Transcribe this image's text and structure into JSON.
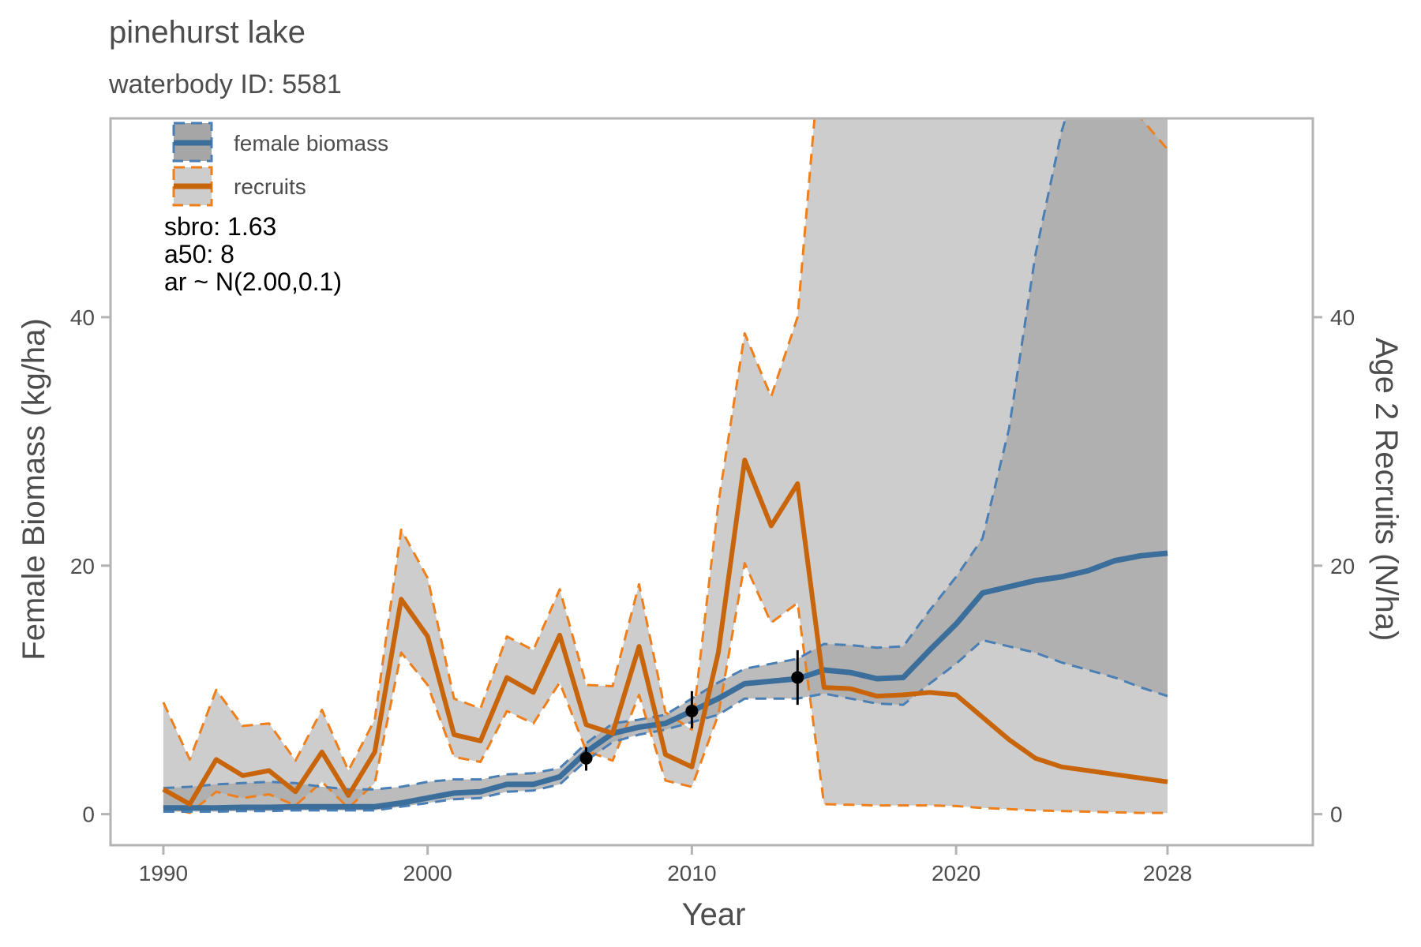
{
  "chart_data": {
    "type": "line",
    "title": "pinehurst lake",
    "subtitle": "waterbody ID: 5581",
    "xlabel": "Year",
    "ylabel": "Female Biomass (kg/ha)",
    "y2label": "Age 2 Recruits (N/ha)",
    "xlim": [
      1988,
      2033.5
    ],
    "ylim": [
      -2.5,
      56
    ],
    "xticks": [
      1990,
      2000,
      2010,
      2020,
      2028
    ],
    "xtick_labels": [
      "1990",
      "2000",
      "2010",
      "2020",
      "2028"
    ],
    "yticks": [
      0,
      20,
      40
    ],
    "ytick_labels": [
      "0",
      "20",
      "40"
    ],
    "y2ticks": [
      0,
      20,
      40
    ],
    "y2tick_labels": [
      "0",
      "20",
      "40"
    ],
    "grid": false,
    "legend_position": "top-left",
    "legend": [
      {
        "label": "female biomass",
        "color": "#3c6e9c",
        "dash_color": "#4a7fb5"
      },
      {
        "label": "recruits",
        "color": "#c8640a",
        "dash_color": "#ef7f1a"
      }
    ],
    "annotations": [
      "sbro: 1.63",
      "a50: 8",
      "ar ~ N(2.00,0.1)"
    ],
    "colors": {
      "biomass_line": "#3c6e9c",
      "biomass_dash": "#4a7fb5",
      "recruit_line": "#c8640a",
      "recruit_dash": "#ef7f1a",
      "band_light": "#cdcdcd",
      "band_dark": "#a6a6a6",
      "panel_border": "#b3b3b3",
      "points": "#000000"
    },
    "series": [
      {
        "name": "female biomass",
        "x": [
          1990,
          1991,
          1992,
          1993,
          1994,
          1995,
          1996,
          1997,
          1998,
          1999,
          2000,
          2001,
          2002,
          2003,
          2004,
          2005,
          2006,
          2007,
          2008,
          2009,
          2010,
          2011,
          2012,
          2013,
          2014,
          2015,
          2016,
          2017,
          2018,
          2019,
          2020,
          2021,
          2022,
          2023,
          2024,
          2025,
          2026,
          2027,
          2028
        ],
        "y": [
          0.5,
          0.5,
          0.5,
          0.55,
          0.55,
          0.6,
          0.6,
          0.6,
          0.6,
          0.9,
          1.3,
          1.7,
          1.8,
          2.4,
          2.4,
          3.0,
          5.0,
          6.5,
          7.0,
          7.3,
          8.3,
          9.3,
          10.5,
          10.7,
          10.9,
          11.6,
          11.4,
          10.9,
          11.0,
          13.2,
          15.3,
          17.8,
          18.3,
          18.8,
          19.1,
          19.6,
          20.4,
          20.8,
          21.0
        ],
        "lower": [
          0.2,
          0.2,
          0.2,
          0.25,
          0.25,
          0.3,
          0.3,
          0.3,
          0.3,
          0.6,
          0.9,
          1.2,
          1.3,
          1.8,
          1.9,
          2.4,
          4.3,
          5.8,
          6.4,
          6.8,
          7.4,
          8.0,
          9.3,
          9.3,
          9.3,
          9.7,
          9.3,
          8.9,
          8.8,
          10.5,
          12.1,
          14.0,
          13.5,
          13.0,
          12.2,
          11.6,
          11.0,
          10.2,
          9.5
        ],
        "upper": [
          2.1,
          2.2,
          2.4,
          2.5,
          2.6,
          2.5,
          2.2,
          2.0,
          2.0,
          2.2,
          2.6,
          2.8,
          2.8,
          3.2,
          3.3,
          3.7,
          5.7,
          7.3,
          7.6,
          8.0,
          9.3,
          10.6,
          11.7,
          12.1,
          12.5,
          13.7,
          13.6,
          13.4,
          13.5,
          16.4,
          19.1,
          22.2,
          31.0,
          45.0,
          55.0,
          62.0,
          70.0,
          80.0,
          90.0
        ],
        "observed": {
          "x": [
            2006,
            2010,
            2014
          ],
          "y": [
            4.5,
            8.3,
            11.0
          ],
          "lower": [
            3.5,
            6.9,
            8.8
          ],
          "upper": [
            5.4,
            9.9,
            13.2
          ]
        }
      },
      {
        "name": "recruits",
        "x": [
          1990,
          1991,
          1992,
          1993,
          1994,
          1995,
          1996,
          1997,
          1998,
          1999,
          2000,
          2001,
          2002,
          2003,
          2004,
          2005,
          2006,
          2007,
          2008,
          2009,
          2010,
          2011,
          2012,
          2013,
          2014,
          2015,
          2016,
          2017,
          2018,
          2019,
          2020,
          2021,
          2022,
          2023,
          2024,
          2025,
          2026,
          2027,
          2028
        ],
        "y": [
          2.0,
          0.8,
          4.4,
          3.1,
          3.5,
          1.8,
          5.0,
          1.5,
          5.0,
          17.3,
          14.3,
          6.4,
          5.9,
          11.0,
          9.8,
          14.4,
          7.2,
          6.5,
          13.5,
          4.8,
          3.8,
          13.0,
          28.5,
          23.2,
          26.6,
          10.2,
          10.1,
          9.5,
          9.6,
          9.8,
          9.6,
          7.8,
          6.0,
          4.5,
          3.8,
          3.5,
          3.2,
          2.9,
          2.6
        ],
        "lower": [
          0.6,
          0.1,
          1.8,
          1.3,
          1.6,
          0.7,
          2.6,
          0.5,
          2.5,
          13.0,
          10.4,
          4.6,
          4.2,
          8.3,
          7.3,
          10.6,
          5.1,
          4.3,
          9.6,
          2.7,
          2.2,
          8.0,
          20.2,
          15.4,
          17.0,
          0.8,
          0.75,
          0.7,
          0.7,
          0.7,
          0.65,
          0.5,
          0.4,
          0.3,
          0.25,
          0.2,
          0.15,
          0.1,
          0.1
        ],
        "upper": [
          9.0,
          4.4,
          10.0,
          7.1,
          7.3,
          4.3,
          8.4,
          3.5,
          7.6,
          22.9,
          19.0,
          9.3,
          8.5,
          14.3,
          13.2,
          18.1,
          10.4,
          10.3,
          18.5,
          8.2,
          6.8,
          25.0,
          38.7,
          33.6,
          40.0,
          65.0,
          100.0,
          100.0,
          100.0,
          100.0,
          100.0,
          100.0,
          100.0,
          100.0,
          100.0,
          100.0,
          100.0,
          56.0,
          53.5
        ]
      }
    ]
  }
}
